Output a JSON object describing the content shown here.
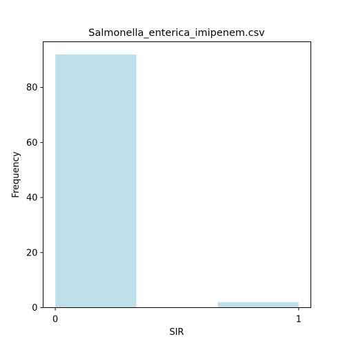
{
  "chart_data": {
    "type": "bar",
    "title": "Salmonella_enterica_imipenem.csv",
    "xlabel": "SIR",
    "ylabel": "Frequency",
    "x_ticks": [
      0,
      1
    ],
    "y_ticks": [
      0,
      20,
      40,
      60,
      80
    ],
    "xlim": [
      -0.05,
      1.05
    ],
    "ylim": [
      0,
      96.6
    ],
    "bins": [
      {
        "x_start": 0.0,
        "x_end": 0.333,
        "value": 92
      },
      {
        "x_start": 0.333,
        "x_end": 0.667,
        "value": 0
      },
      {
        "x_start": 0.667,
        "x_end": 1.0,
        "value": 2
      }
    ],
    "bar_color": "#add8e6",
    "bar_alpha": 0.8,
    "grid": false,
    "legend": "none"
  }
}
